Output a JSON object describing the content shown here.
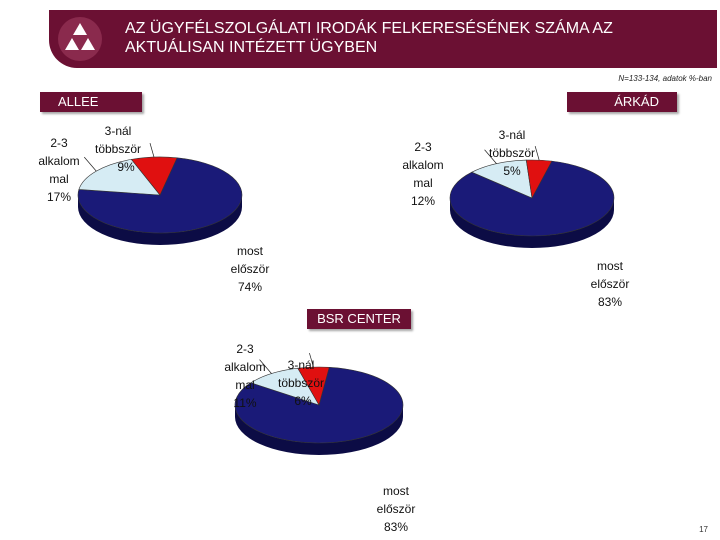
{
  "header": {
    "title_line1": "AZ ÜGYFÉLSZOLGÁLATI IRODÁK FELKERESÉSÉNEK SZÁMA AZ",
    "title_line2": "AKTUÁLISAN INTÉZETT ÜGYBEN"
  },
  "note": "N=133-134, adatok %-ban",
  "page_number": "17",
  "colors": {
    "brand": "#6b1033",
    "most": "#1a1a78",
    "two_three": "#d6ecf4",
    "three_plus": "#e01010"
  },
  "chart_data": [
    {
      "type": "pie",
      "title": "ALLEE",
      "categories": [
        "most először",
        "2-3 alkalommal",
        "3-nál többször"
      ],
      "values": [
        74,
        17,
        9
      ],
      "labels": [
        [
          "most",
          "először",
          "74%"
        ],
        [
          "2-3",
          "alkalom",
          "mal",
          "17%"
        ],
        [
          "3-nál",
          "többször",
          "9%"
        ]
      ]
    },
    {
      "type": "pie",
      "title": "ÁRKÁD",
      "categories": [
        "most először",
        "2-3 alkalommal",
        "3-nál többször"
      ],
      "values": [
        83,
        12,
        5
      ],
      "labels": [
        [
          "most",
          "először",
          "83%"
        ],
        [
          "2-3",
          "alkalom",
          "mal",
          "12%"
        ],
        [
          "3-nál",
          "többször",
          "5%"
        ]
      ]
    },
    {
      "type": "pie",
      "title": "BSR CENTER",
      "categories": [
        "most először",
        "2-3 alkalommal",
        "3-nál többször"
      ],
      "values": [
        83,
        11,
        6
      ],
      "labels": [
        [
          "most",
          "először",
          "83%"
        ],
        [
          "2-3",
          "alkalom",
          "mal",
          "11%"
        ],
        [
          "3-nál",
          "többször",
          "6%"
        ]
      ]
    }
  ]
}
